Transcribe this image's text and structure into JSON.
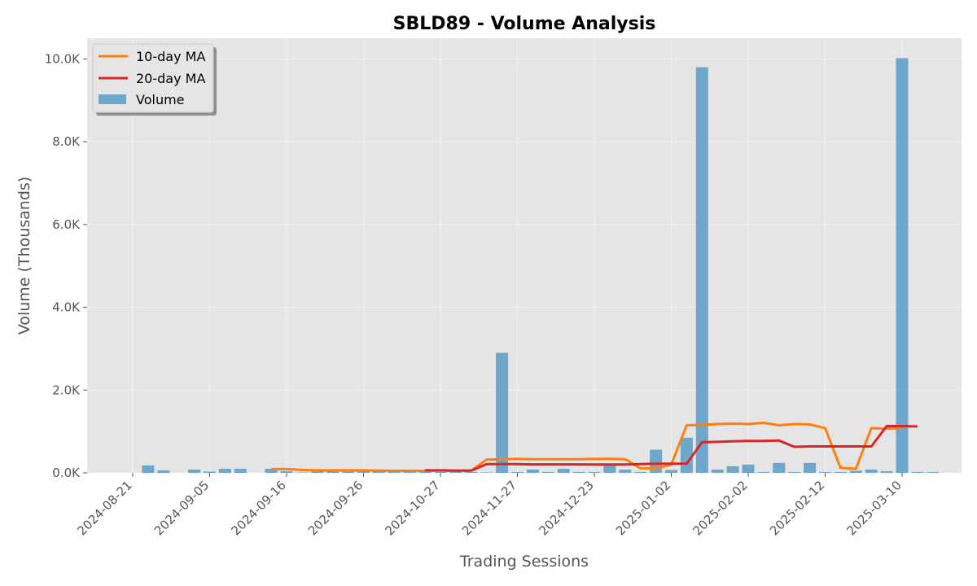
{
  "chart_data": {
    "type": "bar",
    "title": "SBLD89 - Volume Analysis",
    "xlabel": "Trading Sessions",
    "ylabel": "Volume (Thousands)",
    "ylim": [
      0,
      10500
    ],
    "y_ticks": [
      0,
      2000,
      4000,
      6000,
      8000,
      10000
    ],
    "y_tick_labels": [
      "0.0K",
      "2.0K",
      "4.0K",
      "6.0K",
      "8.0K",
      "10.0K"
    ],
    "x_tick_labels": [
      {
        "index": 0,
        "label": "2024-08-21"
      },
      {
        "index": 5,
        "label": "2024-09-05"
      },
      {
        "index": 10,
        "label": "2024-09-16"
      },
      {
        "index": 15,
        "label": "2024-09-26"
      },
      {
        "index": 20,
        "label": "2024-10-27"
      },
      {
        "index": 25,
        "label": "2024-11-27"
      },
      {
        "index": 30,
        "label": "2024-12-23"
      },
      {
        "index": 35,
        "label": "2025-01-02"
      },
      {
        "index": 40,
        "label": "2025-02-02"
      },
      {
        "index": 45,
        "label": "2025-02-12"
      },
      {
        "index": 50,
        "label": "2025-03-10"
      }
    ],
    "grid": true,
    "legend_position": "top-left",
    "colors": {
      "volume": "#5b9bc8",
      "ma10": "#ff7f0e",
      "ma20": "#d62728",
      "plot_bg": "#e5e5e5",
      "grid": "#f2f2f2"
    },
    "series": [
      {
        "name": "Volume",
        "kind": "bar",
        "values": [
          0,
          180,
          60,
          0,
          80,
          30,
          100,
          100,
          0,
          100,
          40,
          10,
          40,
          40,
          40,
          50,
          50,
          30,
          30,
          40,
          20,
          20,
          20,
          10,
          2900,
          20,
          80,
          20,
          100,
          20,
          20,
          180,
          80,
          20,
          560,
          70,
          850,
          9800,
          80,
          160,
          200,
          20,
          240,
          20,
          240,
          20,
          20,
          50,
          80,
          40,
          10020,
          20,
          20
        ]
      },
      {
        "name": "10-day MA",
        "kind": "line",
        "start": 9,
        "end": 51,
        "values": [
          90,
          90,
          70,
          60,
          60,
          60,
          60,
          55,
          50,
          50,
          50,
          55,
          55,
          55,
          320,
          330,
          340,
          330,
          330,
          330,
          330,
          340,
          340,
          330,
          110,
          110,
          200,
          1150,
          1160,
          1180,
          1190,
          1180,
          1210,
          1150,
          1180,
          1170,
          1080,
          120,
          100,
          1080,
          1070,
          1070
        ]
      },
      {
        "name": "20-day MA",
        "kind": "line",
        "start": 19,
        "end": 51,
        "values": [
          60,
          60,
          55,
          55,
          210,
          210,
          210,
          205,
          205,
          205,
          205,
          200,
          200,
          200,
          210,
          220,
          220,
          220,
          740,
          750,
          760,
          770,
          770,
          780,
          630,
          640,
          640,
          640,
          640,
          640,
          1130,
          1130,
          1120
        ]
      }
    ]
  }
}
